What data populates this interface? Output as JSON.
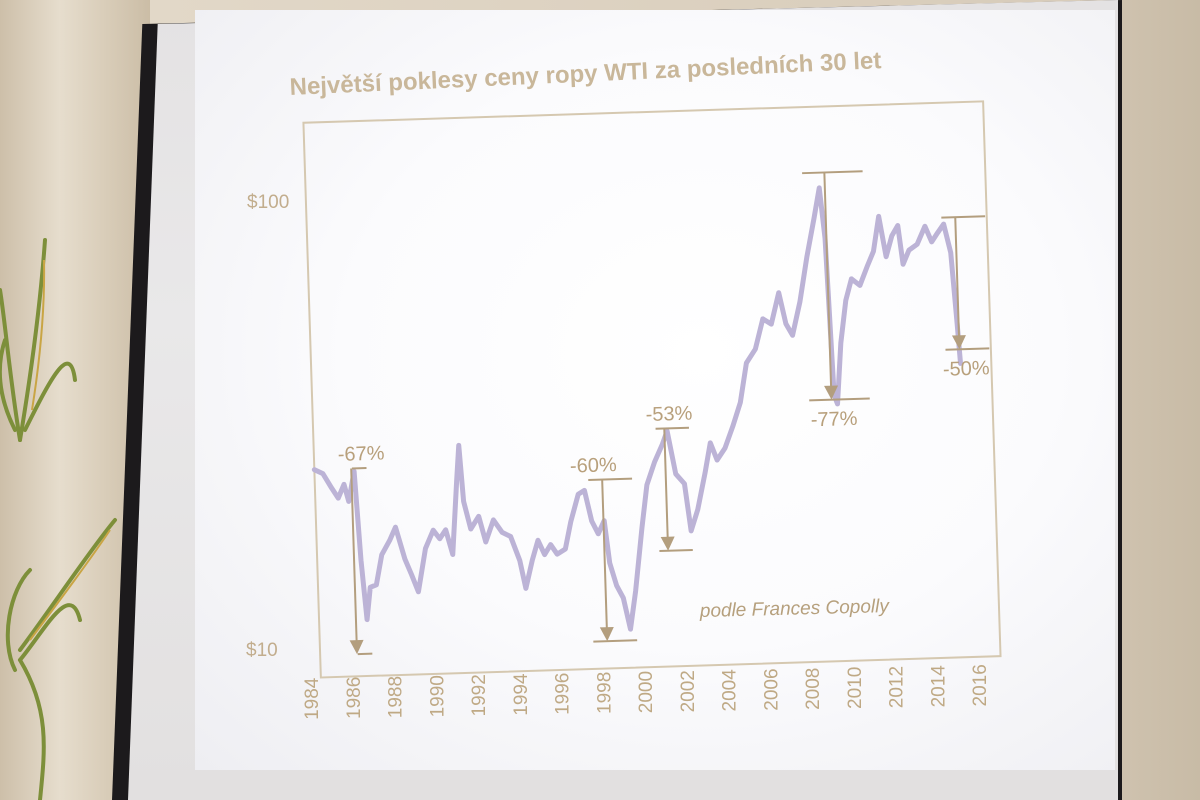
{
  "chart_data": {
    "type": "line",
    "title": "Největší poklesy ceny ropy WTI za posledních 30 let",
    "xlabel": "",
    "ylabel": "",
    "y_scale": "log",
    "ylim": [
      10,
      170
    ],
    "xlim": [
      1984,
      2016
    ],
    "y_tick_labels": [
      "$100",
      "$10"
    ],
    "x_tick_labels": [
      "1984",
      "1986",
      "1988",
      "1990",
      "1992",
      "1994",
      "1996",
      "1998",
      "2000",
      "2002",
      "2004",
      "2006",
      "2008",
      "2010",
      "2012",
      "2014",
      "2016"
    ],
    "grid": false,
    "source_note": "podle Frances Copolly",
    "series": [
      {
        "color": "#bcb3d6",
        "points": [
          [
            1984.0,
            29.5
          ],
          [
            1984.4,
            28.8
          ],
          [
            1984.8,
            26.5
          ],
          [
            1985.1,
            25.0
          ],
          [
            1985.4,
            27.0
          ],
          [
            1985.6,
            24.5
          ],
          [
            1985.9,
            29.0
          ],
          [
            1986.1,
            17.5
          ],
          [
            1986.3,
            12.5
          ],
          [
            1986.5,
            15.0
          ],
          [
            1986.8,
            15.2
          ],
          [
            1987.1,
            18.0
          ],
          [
            1987.5,
            19.5
          ],
          [
            1987.8,
            21.0
          ],
          [
            1988.2,
            17.5
          ],
          [
            1988.5,
            16.0
          ],
          [
            1988.8,
            14.5
          ],
          [
            1989.2,
            18.5
          ],
          [
            1989.6,
            20.5
          ],
          [
            1989.9,
            19.5
          ],
          [
            1990.2,
            20.5
          ],
          [
            1990.5,
            17.8
          ],
          [
            1990.8,
            27.0
          ],
          [
            1990.95,
            33.0
          ],
          [
            1991.1,
            24.0
          ],
          [
            1991.4,
            20.5
          ],
          [
            1991.8,
            22.0
          ],
          [
            1992.1,
            19.0
          ],
          [
            1992.5,
            21.5
          ],
          [
            1992.9,
            20.0
          ],
          [
            1993.3,
            19.5
          ],
          [
            1993.7,
            17.0
          ],
          [
            1993.95,
            14.5
          ],
          [
            1994.3,
            17.0
          ],
          [
            1994.6,
            19.0
          ],
          [
            1994.9,
            17.5
          ],
          [
            1995.2,
            18.5
          ],
          [
            1995.5,
            17.5
          ],
          [
            1995.9,
            18.0
          ],
          [
            1996.2,
            21.0
          ],
          [
            1996.6,
            24.5
          ],
          [
            1996.9,
            25.0
          ],
          [
            1997.2,
            21.0
          ],
          [
            1997.5,
            19.5
          ],
          [
            1997.8,
            21.0
          ],
          [
            1998.0,
            16.5
          ],
          [
            1998.3,
            14.5
          ],
          [
            1998.6,
            13.5
          ],
          [
            1998.9,
            11.3
          ],
          [
            1999.2,
            14.0
          ],
          [
            1999.6,
            20.0
          ],
          [
            1999.9,
            25.5
          ],
          [
            2000.3,
            29.0
          ],
          [
            2000.7,
            32.0
          ],
          [
            2000.95,
            34.5
          ],
          [
            2001.3,
            27.0
          ],
          [
            2001.7,
            25.5
          ],
          [
            2001.95,
            19.5
          ],
          [
            2002.3,
            22.0
          ],
          [
            2002.7,
            27.0
          ],
          [
            2003.0,
            32.0
          ],
          [
            2003.3,
            29.0
          ],
          [
            2003.7,
            31.0
          ],
          [
            2004.1,
            35.0
          ],
          [
            2004.5,
            40.0
          ],
          [
            2004.85,
            50.0
          ],
          [
            2005.3,
            54.0
          ],
          [
            2005.7,
            64.0
          ],
          [
            2006.1,
            62.0
          ],
          [
            2006.5,
            74.0
          ],
          [
            2006.8,
            62.0
          ],
          [
            2007.1,
            58.0
          ],
          [
            2007.5,
            70.0
          ],
          [
            2007.9,
            90.0
          ],
          [
            2008.3,
            112.0
          ],
          [
            2008.6,
            133.0
          ],
          [
            2008.8,
            100.0
          ],
          [
            2009.0,
            41.0
          ],
          [
            2009.15,
            39.0
          ],
          [
            2009.4,
            55.0
          ],
          [
            2009.7,
            70.0
          ],
          [
            2010.0,
            79.0
          ],
          [
            2010.4,
            76.0
          ],
          [
            2010.8,
            85.0
          ],
          [
            2011.1,
            92.0
          ],
          [
            2011.4,
            112.0
          ],
          [
            2011.7,
            89.0
          ],
          [
            2012.0,
            100.0
          ],
          [
            2012.3,
            106.0
          ],
          [
            2012.5,
            85.0
          ],
          [
            2012.8,
            92.0
          ],
          [
            2013.2,
            95.0
          ],
          [
            2013.6,
            105.0
          ],
          [
            2013.9,
            96.0
          ],
          [
            2014.2,
            101.0
          ],
          [
            2014.5,
            106.0
          ],
          [
            2014.8,
            90.0
          ],
          [
            2015.0,
            60.0
          ],
          [
            2015.1,
            48.0
          ]
        ]
      }
    ],
    "annotations": [
      {
        "label": "-67%",
        "x_start": 1985.8,
        "x_end": 1986.5,
        "y_from": 29.5,
        "y_to": 10.3,
        "label_x": 1986.2
      },
      {
        "label": "-60%",
        "x_start": 1997.1,
        "x_end": 1999.2,
        "y_from": 26.5,
        "y_to": 10.6,
        "label_x": 1997.3
      },
      {
        "label": "-53%",
        "x_start": 2000.4,
        "x_end": 2002.0,
        "y_from": 35.0,
        "y_to": 17.5,
        "label_x": 2001.0
      },
      {
        "label": "-77%",
        "x_start": 2007.8,
        "x_end": 2010.7,
        "y_from": 145.0,
        "y_to": 40.0,
        "label_x": 2008.9
      },
      {
        "label": "-50%",
        "x_start": 2014.4,
        "x_end": 2016.5,
        "y_from": 110.0,
        "y_to": 52.0,
        "label_x": 2015.3
      }
    ]
  }
}
